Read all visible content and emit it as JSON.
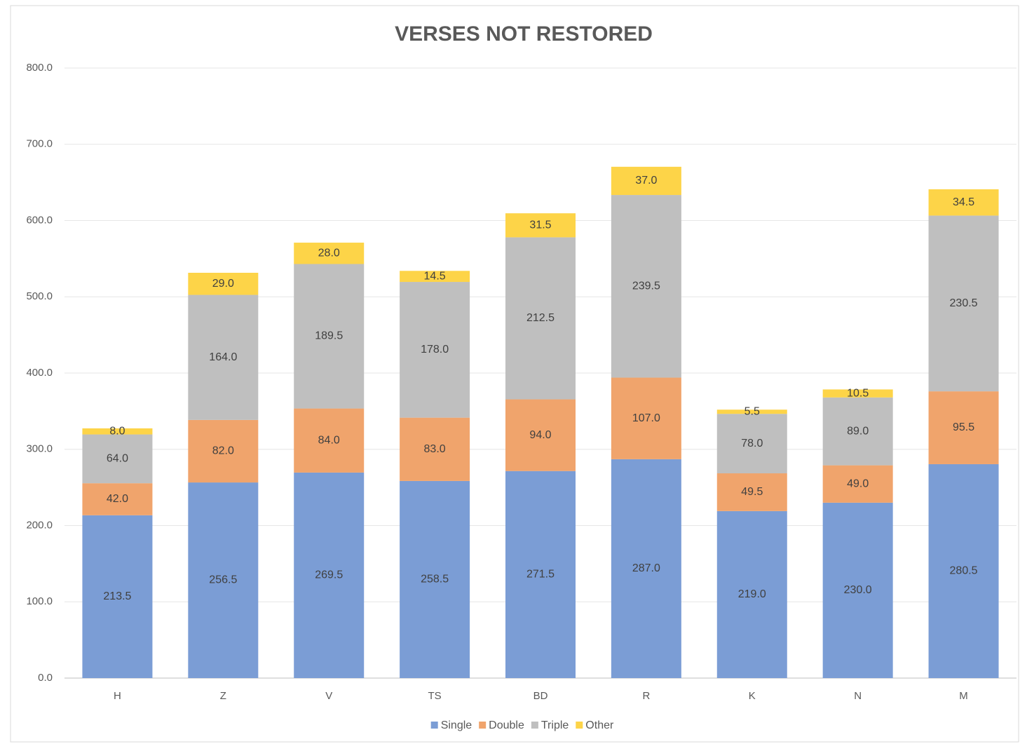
{
  "chart_data": {
    "type": "stacked_bar",
    "title": "VERSES NOT RESTORED",
    "categories": [
      "H",
      "Z",
      "V",
      "TS",
      "BD",
      "R",
      "K",
      "N",
      "M"
    ],
    "series": [
      {
        "name": "Single",
        "color": "#7b9dd5",
        "values": [
          213.5,
          256.5,
          269.5,
          258.5,
          271.5,
          287,
          219,
          230,
          280.5
        ],
        "value_labels": [
          "213.5",
          "256.5",
          "269.5",
          "258.5",
          "271.5",
          "287.0",
          "219.0",
          "230.0",
          "280.5"
        ]
      },
      {
        "name": "Double",
        "color": "#f0a46c",
        "values": [
          42,
          82,
          84,
          83,
          94,
          107,
          49.5,
          49,
          95.5
        ],
        "value_labels": [
          "42.0",
          "82.0",
          "84.0",
          "83.0",
          "94.0",
          "107.0",
          "49.5",
          "49.0",
          "95.5"
        ]
      },
      {
        "name": "Triple",
        "color": "#bfbfbf",
        "values": [
          64,
          164,
          189.5,
          178,
          212.5,
          239.5,
          78,
          89,
          230.5
        ],
        "value_labels": [
          "64.0",
          "164.0",
          "189.5",
          "178.0",
          "212.5",
          "239.5",
          "78.0",
          "89.0",
          "230.5"
        ]
      },
      {
        "name": "Other",
        "color": "#fdd448",
        "values": [
          8,
          29,
          28,
          14.5,
          31.5,
          37,
          5.5,
          10.5,
          34.5
        ],
        "value_labels": [
          "8.0",
          "29.0",
          "28.0",
          "14.5",
          "31.5",
          "37.0",
          "5.5",
          "10.5",
          "34.5"
        ]
      }
    ],
    "ylim": [
      0,
      800
    ],
    "yticks": [
      {
        "value": 0,
        "label": "0.0"
      },
      {
        "value": 100,
        "label": "100.0"
      },
      {
        "value": 200,
        "label": "200.0"
      },
      {
        "value": 300,
        "label": "300.0"
      },
      {
        "value": 400,
        "label": "400.0"
      },
      {
        "value": 500,
        "label": "500.0"
      },
      {
        "value": 600,
        "label": "600.0"
      },
      {
        "value": 700,
        "label": "700.0"
      },
      {
        "value": 800,
        "label": "800.0"
      }
    ],
    "grid": true,
    "legend": "bottom"
  }
}
